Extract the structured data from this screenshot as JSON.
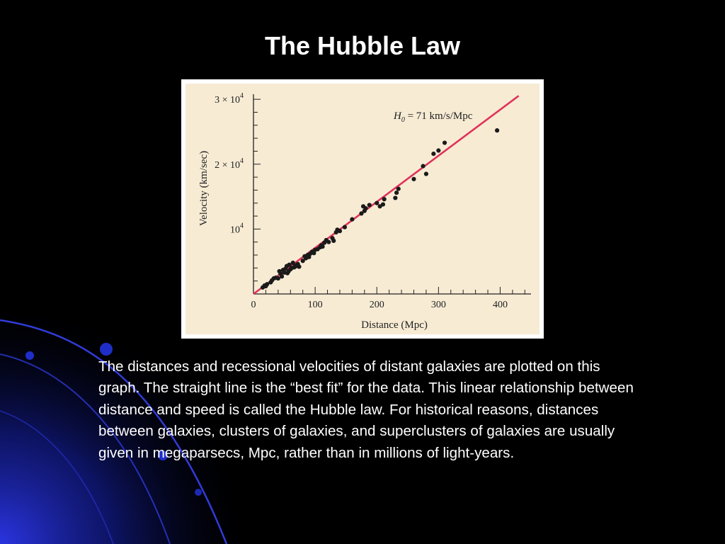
{
  "slide": {
    "title": "The Hubble Law",
    "caption": "The distances and recessional velocities of distant galaxies are plotted on this graph. The straight line is the “best fit” for the data. This linear relationship between distance and speed is called the Hubble law. For historical reasons, distances between galaxies, clusters of galaxies, and superclusters of galaxies are usually given in megaparsecs, Mpc, rather than in millions of light-years.",
    "colors": {
      "background": "#000000",
      "text": "#ffffff",
      "decor_blue": "#1a22c8",
      "plot_background": "#f7ebd4",
      "fit_line": "#e0335a",
      "points": "#1a1a1a"
    }
  },
  "chart_data": {
    "type": "scatter",
    "title": "",
    "xlabel": "Distance (Mpc)",
    "ylabel": "Velocity (km/sec)",
    "xlim": [
      0,
      450
    ],
    "ylim": [
      0,
      31000
    ],
    "x_ticks": [
      {
        "value": 0,
        "label": "0"
      },
      {
        "value": 100,
        "label": "100"
      },
      {
        "value": 200,
        "label": "200"
      },
      {
        "value": 300,
        "label": "300"
      },
      {
        "value": 400,
        "label": "400"
      }
    ],
    "y_ticks": [
      {
        "value": 10000,
        "label": "10",
        "exp": "4"
      },
      {
        "value": 20000,
        "label": "2 × 10",
        "exp": "4"
      },
      {
        "value": 30000,
        "label": "3 × 10",
        "exp": "4"
      }
    ],
    "grid": false,
    "annotation": {
      "symbol": "H",
      "subscript": "0",
      "text": " = 71 km/s/Mpc"
    },
    "fit_line": {
      "slope": 71,
      "x": [
        0,
        430
      ]
    },
    "points": [
      [
        15,
        1000
      ],
      [
        18,
        1300
      ],
      [
        20,
        1200
      ],
      [
        22,
        1500
      ],
      [
        28,
        1800
      ],
      [
        30,
        2100
      ],
      [
        33,
        2400
      ],
      [
        36,
        2500
      ],
      [
        40,
        2400
      ],
      [
        42,
        3500
      ],
      [
        44,
        3100
      ],
      [
        46,
        2700
      ],
      [
        48,
        3700
      ],
      [
        50,
        3300
      ],
      [
        52,
        3900
      ],
      [
        54,
        4300
      ],
      [
        55,
        3200
      ],
      [
        57,
        3500
      ],
      [
        58,
        4500
      ],
      [
        60,
        3800
      ],
      [
        62,
        4000
      ],
      [
        64,
        4800
      ],
      [
        66,
        4100
      ],
      [
        68,
        4400
      ],
      [
        70,
        4300
      ],
      [
        72,
        4600
      ],
      [
        74,
        4200
      ],
      [
        80,
        5100
      ],
      [
        83,
        5800
      ],
      [
        85,
        5500
      ],
      [
        88,
        6000
      ],
      [
        90,
        5700
      ],
      [
        92,
        6200
      ],
      [
        95,
        6500
      ],
      [
        98,
        6300
      ],
      [
        100,
        6800
      ],
      [
        104,
        6900
      ],
      [
        108,
        7200
      ],
      [
        110,
        7500
      ],
      [
        112,
        7300
      ],
      [
        115,
        7900
      ],
      [
        118,
        8300
      ],
      [
        122,
        8000
      ],
      [
        128,
        8600
      ],
      [
        130,
        8200
      ],
      [
        134,
        9500
      ],
      [
        136,
        9900
      ],
      [
        140,
        9700
      ],
      [
        148,
        10300
      ],
      [
        160,
        11500
      ],
      [
        175,
        12400
      ],
      [
        178,
        13500
      ],
      [
        180,
        12800
      ],
      [
        182,
        13200
      ],
      [
        188,
        13700
      ],
      [
        200,
        14000
      ],
      [
        205,
        13500
      ],
      [
        210,
        13800
      ],
      [
        212,
        14600
      ],
      [
        230,
        14800
      ],
      [
        232,
        15600
      ],
      [
        235,
        16200
      ],
      [
        260,
        17700
      ],
      [
        275,
        19700
      ],
      [
        280,
        18500
      ],
      [
        292,
        21600
      ],
      [
        300,
        22100
      ],
      [
        310,
        23300
      ],
      [
        395,
        25200
      ]
    ]
  }
}
